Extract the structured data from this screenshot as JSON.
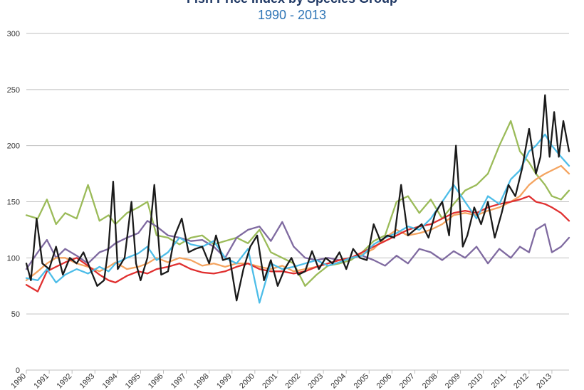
{
  "chart_data": {
    "type": "line",
    "title": "Fish Price Index by Species Group",
    "subtitle": "1990 - 2013",
    "xlabel": "",
    "ylabel": "",
    "ylim": [
      0,
      300
    ],
    "yticks": [
      0,
      50,
      100,
      150,
      200,
      250,
      300
    ],
    "xlim": [
      1990,
      2013.75
    ],
    "xticks": [
      "1990",
      "1991",
      "1992",
      "1993",
      "1994",
      "1995",
      "1996",
      "1997",
      "1998",
      "1999",
      "2000",
      "2001",
      "2002",
      "2003",
      "2004",
      "2005",
      "2006",
      "2007",
      "2008",
      "2009",
      "2010",
      "2011",
      "2012",
      "2013"
    ],
    "grid": true,
    "legend": "none",
    "series": [
      {
        "color": "#9bbb59",
        "x": [
          1990.0,
          1990.5,
          1990.9,
          1991.3,
          1991.7,
          1992.2,
          1992.7,
          1993.2,
          1993.6,
          1993.9,
          1994.4,
          1994.9,
          1995.3,
          1995.7,
          1996.2,
          1996.7,
          1997.2,
          1997.7,
          1998.2,
          1998.7,
          1999.2,
          1999.7,
          2000.2,
          2000.7,
          2001.2,
          2001.7,
          2002.2,
          2002.7,
          2003.2,
          2003.7,
          2004.2,
          2004.7,
          2005.2,
          2005.7,
          2006.2,
          2006.7,
          2007.2,
          2007.7,
          2008.2,
          2008.7,
          2009.2,
          2009.7,
          2010.2,
          2010.7,
          2011.2,
          2011.6,
          2012.0,
          2012.3,
          2012.7,
          2013.0,
          2013.4,
          2013.75
        ],
        "y": [
          138,
          135,
          152,
          130,
          140,
          135,
          165,
          133,
          138,
          130,
          140,
          145,
          150,
          120,
          118,
          112,
          118,
          120,
          112,
          115,
          118,
          113,
          125,
          105,
          100,
          95,
          75,
          85,
          93,
          95,
          98,
          105,
          115,
          120,
          150,
          155,
          140,
          152,
          135,
          148,
          160,
          165,
          175,
          200,
          222,
          195,
          185,
          175,
          165,
          155,
          152,
          160
        ]
      },
      {
        "color": "#7f6aa0",
        "x": [
          1990.0,
          1990.5,
          1990.9,
          1991.3,
          1991.7,
          1992.2,
          1992.7,
          1993.2,
          1993.6,
          1993.9,
          1994.4,
          1994.9,
          1995.3,
          1995.7,
          1996.2,
          1996.7,
          1997.2,
          1997.7,
          1998.2,
          1998.7,
          1999.2,
          1999.7,
          2000.2,
          2000.7,
          2001.2,
          2001.7,
          2002.2,
          2002.7,
          2003.2,
          2003.7,
          2004.2,
          2004.7,
          2005.2,
          2005.7,
          2006.2,
          2006.7,
          2007.2,
          2007.7,
          2008.2,
          2008.7,
          2009.2,
          2009.7,
          2010.2,
          2010.7,
          2011.2,
          2011.6,
          2012.0,
          2012.3,
          2012.7,
          2013.0,
          2013.4,
          2013.75
        ],
        "y": [
          90,
          105,
          116,
          100,
          108,
          102,
          95,
          105,
          108,
          113,
          118,
          122,
          133,
          128,
          120,
          118,
          115,
          116,
          110,
          100,
          118,
          125,
          128,
          115,
          132,
          110,
          100,
          98,
          100,
          98,
          100,
          102,
          98,
          93,
          102,
          95,
          108,
          105,
          98,
          106,
          100,
          110,
          95,
          108,
          100,
          110,
          105,
          125,
          130,
          105,
          110,
          118
        ]
      },
      {
        "color": "#f4a460",
        "x": [
          1990.0,
          1990.5,
          1990.9,
          1991.3,
          1991.7,
          1992.2,
          1992.7,
          1993.2,
          1993.6,
          1993.9,
          1994.4,
          1994.9,
          1995.3,
          1995.7,
          1996.2,
          1996.7,
          1997.2,
          1997.7,
          1998.2,
          1998.7,
          1999.2,
          1999.7,
          2000.2,
          2000.7,
          2001.2,
          2001.7,
          2002.2,
          2002.7,
          2003.2,
          2003.7,
          2004.2,
          2004.7,
          2005.2,
          2005.7,
          2006.2,
          2006.7,
          2007.2,
          2007.7,
          2008.2,
          2008.7,
          2009.2,
          2009.7,
          2010.2,
          2010.7,
          2011.2,
          2011.6,
          2012.0,
          2012.3,
          2012.7,
          2013.0,
          2013.4,
          2013.75
        ],
        "y": [
          80,
          88,
          95,
          100,
          100,
          95,
          92,
          88,
          92,
          96,
          90,
          92,
          95,
          100,
          96,
          100,
          98,
          93,
          95,
          92,
          95,
          95,
          92,
          90,
          93,
          88,
          90,
          92,
          95,
          98,
          100,
          103,
          108,
          118,
          125,
          120,
          122,
          125,
          130,
          138,
          140,
          138,
          142,
          145,
          150,
          155,
          165,
          170,
          175,
          178,
          182,
          175
        ]
      },
      {
        "color": "#e03030",
        "x": [
          1990.0,
          1990.5,
          1990.9,
          1991.3,
          1991.7,
          1992.2,
          1992.7,
          1993.2,
          1993.6,
          1993.9,
          1994.4,
          1994.9,
          1995.3,
          1995.7,
          1996.2,
          1996.7,
          1997.2,
          1997.7,
          1998.2,
          1998.7,
          1999.2,
          1999.7,
          2000.2,
          2000.7,
          2001.2,
          2001.7,
          2002.2,
          2002.7,
          2003.2,
          2003.7,
          2004.2,
          2004.7,
          2005.2,
          2005.7,
          2006.2,
          2006.7,
          2007.2,
          2007.7,
          2008.2,
          2008.7,
          2009.2,
          2009.7,
          2010.2,
          2010.7,
          2011.2,
          2011.6,
          2012.0,
          2012.3,
          2012.7,
          2013.0,
          2013.4,
          2013.75
        ],
        "y": [
          76,
          70,
          88,
          92,
          96,
          100,
          93,
          85,
          80,
          78,
          84,
          88,
          86,
          90,
          92,
          95,
          90,
          87,
          86,
          88,
          92,
          95,
          90,
          88,
          88,
          86,
          88,
          92,
          95,
          98,
          100,
          105,
          110,
          115,
          120,
          125,
          128,
          130,
          135,
          140,
          142,
          140,
          145,
          148,
          150,
          152,
          155,
          150,
          148,
          145,
          140,
          133
        ]
      },
      {
        "color": "#4dbde8",
        "x": [
          1990.0,
          1990.5,
          1990.9,
          1991.3,
          1991.7,
          1992.2,
          1992.7,
          1993.2,
          1993.6,
          1993.9,
          1994.4,
          1994.9,
          1995.3,
          1995.7,
          1996.2,
          1996.7,
          1997.2,
          1997.7,
          1998.2,
          1998.7,
          1999.2,
          1999.7,
          2000.2,
          2000.7,
          2001.2,
          2001.7,
          2002.2,
          2002.7,
          2003.2,
          2003.7,
          2004.2,
          2004.7,
          2005.2,
          2005.7,
          2006.2,
          2006.7,
          2007.2,
          2007.7,
          2008.2,
          2008.7,
          2009.2,
          2009.7,
          2010.2,
          2010.7,
          2011.2,
          2011.6,
          2012.0,
          2012.3,
          2012.7,
          2013.0,
          2013.4,
          2013.75
        ],
        "y": [
          82,
          80,
          90,
          78,
          85,
          90,
          86,
          92,
          88,
          95,
          100,
          104,
          110,
          98,
          105,
          118,
          112,
          110,
          115,
          100,
          95,
          108,
          60,
          95,
          90,
          92,
          95,
          98,
          93,
          96,
          100,
          102,
          112,
          118,
          122,
          128,
          125,
          135,
          150,
          165,
          150,
          135,
          155,
          148,
          170,
          178,
          195,
          200,
          210,
          200,
          190,
          182
        ]
      },
      {
        "color": "#1a1a1a",
        "x": [
          1990.0,
          1990.2,
          1990.45,
          1990.7,
          1991.0,
          1991.3,
          1991.6,
          1991.9,
          1992.2,
          1992.5,
          1992.8,
          1993.1,
          1993.4,
          1993.6,
          1993.8,
          1994.0,
          1994.3,
          1994.6,
          1994.8,
          1995.0,
          1995.3,
          1995.6,
          1995.9,
          1996.2,
          1996.5,
          1996.8,
          1997.1,
          1997.4,
          1997.7,
          1998.0,
          1998.3,
          1998.6,
          1998.9,
          1999.2,
          1999.5,
          1999.8,
          2000.1,
          2000.4,
          2000.7,
          2001.0,
          2001.3,
          2001.6,
          2001.9,
          2002.2,
          2002.5,
          2002.8,
          2003.1,
          2003.4,
          2003.7,
          2004.0,
          2004.3,
          2004.6,
          2004.9,
          2005.2,
          2005.5,
          2005.8,
          2006.1,
          2006.4,
          2006.7,
          2007.0,
          2007.3,
          2007.6,
          2007.9,
          2008.2,
          2008.5,
          2008.8,
          2009.1,
          2009.3,
          2009.6,
          2009.9,
          2010.2,
          2010.5,
          2010.8,
          2011.1,
          2011.4,
          2011.7,
          2012.0,
          2012.3,
          2012.5,
          2012.7,
          2012.9,
          2013.1,
          2013.3,
          2013.5,
          2013.75
        ],
        "y": [
          95,
          80,
          135,
          95,
          90,
          110,
          85,
          100,
          95,
          105,
          90,
          75,
          80,
          110,
          168,
          90,
          100,
          150,
          95,
          80,
          100,
          165,
          85,
          88,
          120,
          135,
          105,
          108,
          110,
          95,
          120,
          98,
          100,
          62,
          90,
          110,
          120,
          80,
          98,
          75,
          90,
          100,
          85,
          88,
          106,
          90,
          100,
          95,
          105,
          90,
          108,
          100,
          98,
          130,
          115,
          120,
          118,
          165,
          120,
          125,
          130,
          118,
          140,
          150,
          120,
          200,
          110,
          120,
          145,
          130,
          150,
          118,
          140,
          165,
          155,
          180,
          215,
          175,
          190,
          245,
          190,
          230,
          190,
          222,
          195
        ]
      }
    ]
  }
}
